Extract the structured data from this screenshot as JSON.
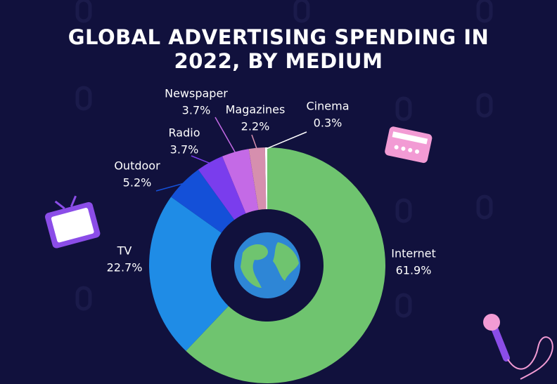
{
  "chart_data": {
    "type": "donut",
    "title": "GLOBAL ADVERTISING SPENDING IN 2022, BY MEDIUM",
    "categories": [
      "Internet",
      "TV",
      "Outdoor",
      "Radio",
      "Newspaper",
      "Magazines",
      "Cinema"
    ],
    "values": [
      61.9,
      22.7,
      5.2,
      3.7,
      3.7,
      2.2,
      0.3
    ],
    "value_labels": [
      "61.9%",
      "22.7%",
      "5.2%",
      "3.7%",
      "3.7%",
      "2.2%",
      "0.3%"
    ],
    "colors": [
      "#6fc46f",
      "#1f8ce6",
      "#1450d8",
      "#7a3ded",
      "#c46ae6",
      "#d68fae",
      "#ffffff"
    ]
  }
}
